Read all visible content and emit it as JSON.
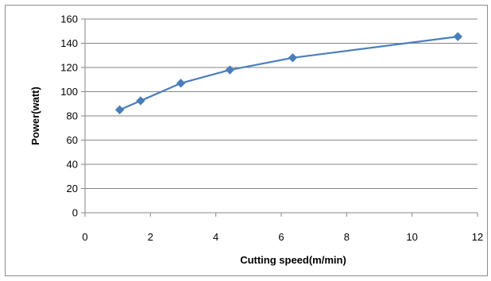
{
  "chart_data": {
    "type": "line",
    "title": "",
    "xlabel": "Cutting speed(m/min)",
    "ylabel": "Power(watt)",
    "xlim": [
      0,
      12
    ],
    "ylim": [
      0,
      160
    ],
    "xticks": [
      0,
      2,
      4,
      6,
      8,
      10,
      12
    ],
    "yticks": [
      0,
      20,
      40,
      60,
      80,
      100,
      120,
      140,
      160
    ],
    "grid": "horizontal",
    "legend": "none",
    "series": [
      {
        "color": "#4a7ebb",
        "marker": "diamond",
        "x": [
          1.06,
          1.7,
          2.93,
          4.43,
          6.35,
          11.4
        ],
        "y": [
          85,
          92.5,
          107,
          118,
          128,
          145.5
        ]
      }
    ]
  }
}
